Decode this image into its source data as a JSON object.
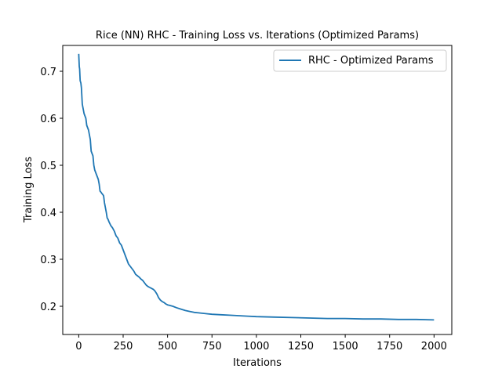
{
  "chart_data": {
    "type": "line",
    "title": "Rice (NN) RHC - Training Loss vs. Iterations (Optimized Params)",
    "xlabel": "Iterations",
    "ylabel": "Training Loss",
    "xlim": [
      -90,
      2100
    ],
    "ylim": [
      0.14,
      0.755
    ],
    "xticks": [
      0,
      250,
      500,
      750,
      1000,
      1250,
      1500,
      1750,
      2000
    ],
    "yticks": [
      0.2,
      0.3,
      0.4,
      0.5,
      0.6,
      0.7
    ],
    "ytick_labels": [
      "0.2",
      "0.3",
      "0.4",
      "0.5",
      "0.6",
      "0.7"
    ],
    "grid": false,
    "legend_position": "top-right",
    "series": [
      {
        "name": "RHC - Optimized Params",
        "color": "#1f77b4",
        "x": [
          0,
          3,
          5,
          8,
          12,
          15,
          20,
          25,
          30,
          35,
          40,
          45,
          50,
          55,
          60,
          65,
          70,
          75,
          80,
          85,
          90,
          95,
          100,
          105,
          110,
          115,
          120,
          125,
          130,
          135,
          140,
          145,
          150,
          155,
          160,
          165,
          170,
          180,
          190,
          200,
          210,
          220,
          230,
          240,
          250,
          260,
          270,
          280,
          290,
          300,
          310,
          320,
          330,
          340,
          350,
          360,
          370,
          380,
          390,
          400,
          410,
          420,
          430,
          440,
          450,
          460,
          470,
          480,
          490,
          500,
          510,
          520,
          530,
          550,
          575,
          600,
          625,
          650,
          675,
          700,
          725,
          750,
          800,
          850,
          900,
          950,
          1000,
          1100,
          1200,
          1300,
          1400,
          1500,
          1600,
          1700,
          1800,
          1900,
          2000
        ],
        "y": [
          0.737,
          0.71,
          0.705,
          0.68,
          0.675,
          0.665,
          0.63,
          0.62,
          0.61,
          0.605,
          0.6,
          0.585,
          0.58,
          0.575,
          0.565,
          0.555,
          0.53,
          0.525,
          0.52,
          0.5,
          0.49,
          0.485,
          0.48,
          0.475,
          0.47,
          0.46,
          0.445,
          0.443,
          0.44,
          0.438,
          0.435,
          0.42,
          0.41,
          0.4,
          0.388,
          0.385,
          0.38,
          0.372,
          0.367,
          0.36,
          0.35,
          0.345,
          0.335,
          0.33,
          0.32,
          0.31,
          0.3,
          0.29,
          0.285,
          0.28,
          0.275,
          0.268,
          0.265,
          0.262,
          0.258,
          0.255,
          0.25,
          0.245,
          0.242,
          0.24,
          0.238,
          0.236,
          0.232,
          0.226,
          0.218,
          0.213,
          0.21,
          0.208,
          0.205,
          0.203,
          0.202,
          0.201,
          0.2,
          0.197,
          0.194,
          0.191,
          0.189,
          0.187,
          0.186,
          0.185,
          0.184,
          0.183,
          0.182,
          0.181,
          0.18,
          0.179,
          0.178,
          0.177,
          0.176,
          0.175,
          0.174,
          0.174,
          0.173,
          0.173,
          0.172,
          0.172,
          0.171
        ]
      }
    ]
  }
}
